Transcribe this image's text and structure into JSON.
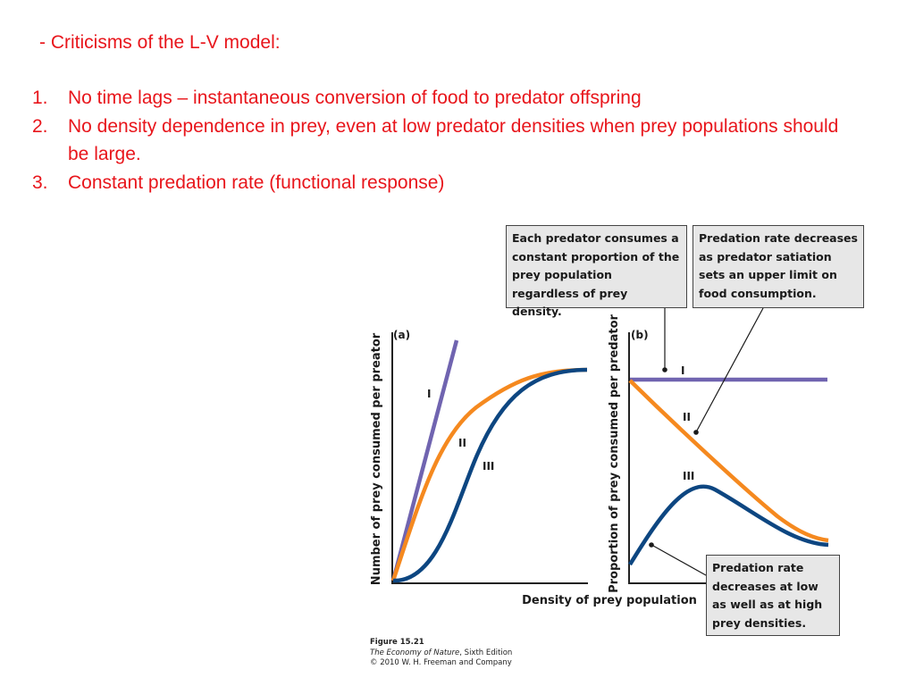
{
  "heading": "- Criticisms of the L-V model:",
  "criticisms": [
    {
      "num": "1.",
      "text": "No time lags – instantaneous conversion of food to predator offspring"
    },
    {
      "num": "2.",
      "text": "No density dependence in prey, even at low predator densities when prey populations should be large."
    },
    {
      "num": "3.",
      "text": "Constant predation rate (functional response)"
    }
  ],
  "figure": {
    "panel_a_label": "(a)",
    "panel_b_label": "(b)",
    "y_label_a": "Number of prey consumed per preator",
    "y_label_b": "Proportion of prey consumed per predator",
    "x_label": "Density of prey population",
    "curve_labels": {
      "one": "I",
      "two": "II",
      "three": "III"
    },
    "colors": {
      "type_one": "#7064b0",
      "type_two": "#f5891f",
      "type_three": "#0d4681",
      "text": "#e8151b"
    },
    "callouts": {
      "constant_proportion": "Each predator consumes a constant proportion of the prey population regardless of prey density.",
      "satiation": "Predation rate decreases as predator satiation sets an upper limit on food consumption.",
      "low_high": "Predation rate decreases at low as well as at high prey densities."
    },
    "caption": {
      "figure_number": "Figure 15.21",
      "book_title": "The Economy of Nature",
      "edition": ", Sixth Edition",
      "copyright": "© 2010 W. H. Freeman and Company"
    }
  }
}
